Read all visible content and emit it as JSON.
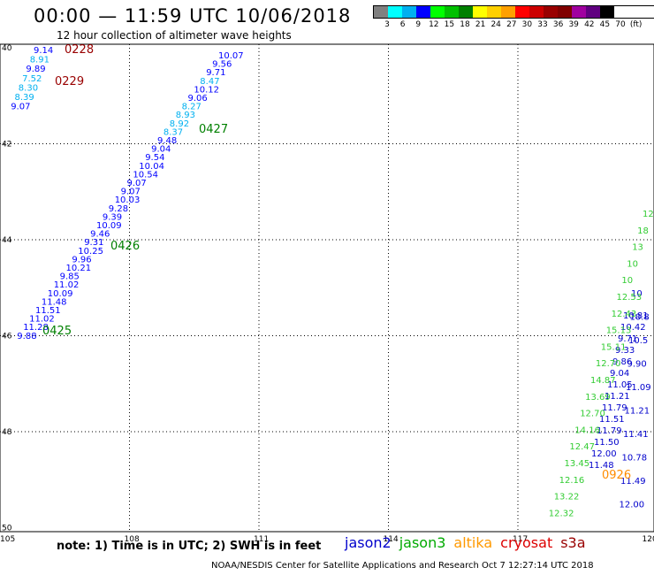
{
  "header": {
    "title": "00:00 — 11:59 UTC 10/06/2018",
    "subtitle": "12 hour collection of altimeter wave heights"
  },
  "legend": {
    "colors": [
      "#808080",
      "#00ffff",
      "#00b0f0",
      "#0000ff",
      "#00ff00",
      "#00c000",
      "#008000",
      "#ffff00",
      "#ffd000",
      "#ffa000",
      "#ff0000",
      "#cc0000",
      "#990000",
      "#800000",
      "#a000a0",
      "#600080",
      "#000000"
    ],
    "labels": [
      "3",
      "6",
      "9",
      "12",
      "15",
      "18",
      "21",
      "24",
      "27",
      "30",
      "33",
      "36",
      "39",
      "42",
      "45",
      "70",
      "(ft)"
    ]
  },
  "map": {
    "lon_ticks": [
      "105",
      "108",
      "111",
      "114",
      "117",
      "120"
    ],
    "lat_ticks": [
      "40",
      "42",
      "44",
      "46",
      "48",
      "50"
    ],
    "times": [
      {
        "t": "0228",
        "color": "#990000"
      },
      {
        "t": "0229",
        "color": "#990000"
      },
      {
        "t": "0427",
        "color": "#008000"
      },
      {
        "t": "0426",
        "color": "#008000"
      },
      {
        "t": "0425",
        "color": "#008000"
      },
      {
        "t": "0926",
        "color": "#ff8c00"
      }
    ],
    "track_left": [
      {
        "v": "9.14",
        "c": "#0000ff"
      },
      {
        "v": "8.91",
        "c": "#00b0f0"
      },
      {
        "v": "9.89",
        "c": "#0000ff"
      },
      {
        "v": "7.52",
        "c": "#00b0f0"
      },
      {
        "v": "8.30",
        "c": "#00b0f0"
      },
      {
        "v": "8.39",
        "c": "#00b0f0"
      },
      {
        "v": "9.07",
        "c": "#0000ff"
      }
    ],
    "track_mid": [
      {
        "v": "10.07",
        "c": "#0000ff"
      },
      {
        "v": "9.56",
        "c": "#0000ff"
      },
      {
        "v": "9.71",
        "c": "#0000ff"
      },
      {
        "v": "8.47",
        "c": "#00b0f0"
      },
      {
        "v": "10.12",
        "c": "#0000ff"
      },
      {
        "v": "9.06",
        "c": "#0000ff"
      },
      {
        "v": "8.27",
        "c": "#00b0f0"
      },
      {
        "v": "8.93",
        "c": "#00b0f0"
      },
      {
        "v": "8.92",
        "c": "#00b0f0"
      },
      {
        "v": "8.37",
        "c": "#00b0f0"
      },
      {
        "v": "9.48",
        "c": "#0000ff"
      },
      {
        "v": "9.04",
        "c": "#0000ff"
      },
      {
        "v": "9.54",
        "c": "#0000ff"
      },
      {
        "v": "10.04",
        "c": "#0000ff"
      },
      {
        "v": "10.54",
        "c": "#0000ff"
      },
      {
        "v": "9.07",
        "c": "#0000ff"
      },
      {
        "v": "9.07",
        "c": "#0000ff"
      },
      {
        "v": "10.03",
        "c": "#0000ff"
      },
      {
        "v": "9.28",
        "c": "#0000ff"
      },
      {
        "v": "9.39",
        "c": "#0000ff"
      },
      {
        "v": "10.09",
        "c": "#0000ff"
      },
      {
        "v": "9.46",
        "c": "#0000ff"
      },
      {
        "v": "9.31",
        "c": "#0000ff"
      },
      {
        "v": "10.25",
        "c": "#0000ff"
      },
      {
        "v": "9.96",
        "c": "#0000ff"
      },
      {
        "v": "10.21",
        "c": "#0000ff"
      },
      {
        "v": "9.85",
        "c": "#0000ff"
      },
      {
        "v": "11.02",
        "c": "#0000ff"
      },
      {
        "v": "10.09",
        "c": "#0000ff"
      },
      {
        "v": "11.48",
        "c": "#0000ff"
      },
      {
        "v": "11.51",
        "c": "#0000ff"
      },
      {
        "v": "11.02",
        "c": "#0000ff"
      },
      {
        "v": "11.28",
        "c": "#0000ff"
      },
      {
        "v": "9.88",
        "c": "#0000ff"
      }
    ],
    "track_right_blue": [
      "10.81",
      "10.42",
      "9.71",
      "9.33",
      "9.86",
      "9.04",
      "11.05",
      "11.21",
      "11.79",
      "11.51",
      "11.79",
      "11.50",
      "12.00",
      "11.48"
    ],
    "track_right_blue2": [
      "10",
      "10.8",
      "10.5",
      "9.90",
      "11.09",
      "11.21",
      "11.41",
      "10.78",
      "11.49",
      "12.00"
    ],
    "track_right_green": [
      "12",
      "18",
      "13",
      "10",
      "10",
      "12.53",
      "12.43",
      "15.13",
      "15.11",
      "12.70",
      "14.87",
      "13.69",
      "12.70",
      "14.16",
      "12.47",
      "13.45",
      "12.16",
      "13.22",
      "12.32"
    ]
  },
  "note": "note:  1) Time is in UTC; 2) SWH is in feet",
  "satellites": [
    {
      "name": "jason2",
      "color": "#0000cc"
    },
    {
      "name": "jason3",
      "color": "#00aa00"
    },
    {
      "name": "altika",
      "color": "#ff9900"
    },
    {
      "name": "cryosat",
      "color": "#dd0000"
    },
    {
      "name": "s3a",
      "color": "#990000"
    }
  ],
  "footer": "NOAA/NESDIS Center for Satellite Applications and Research   Oct  7 12:27:14 UTC 2018"
}
